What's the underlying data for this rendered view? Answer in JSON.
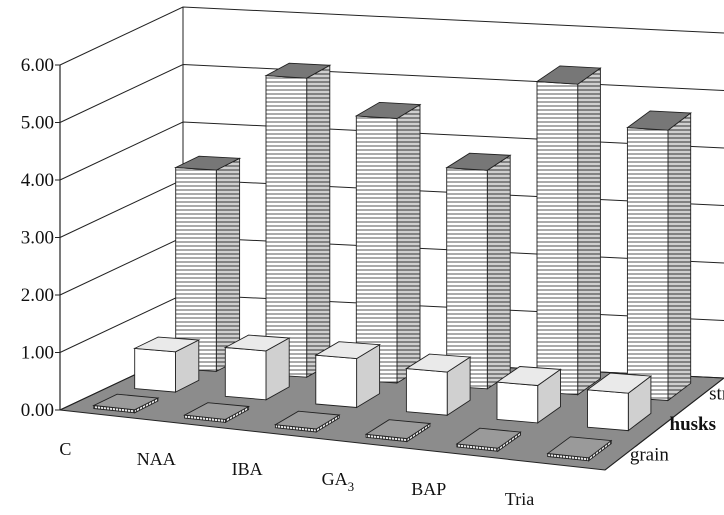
{
  "chart_data": {
    "type": "bar",
    "categories": [
      "C",
      "NAA",
      "IBA",
      "GA3",
      "BAP",
      "Tria"
    ],
    "series": [
      {
        "name": "grain",
        "values": [
          0.0,
          0.0,
          0.0,
          0.0,
          0.0,
          0.0
        ]
      },
      {
        "name": "husks",
        "values": [
          0.7,
          0.85,
          0.85,
          0.75,
          0.65,
          0.65
        ]
      },
      {
        "name": "straw",
        "values": [
          3.5,
          5.2,
          4.6,
          3.8,
          5.4,
          4.7
        ]
      }
    ],
    "ylim": [
      0,
      6
    ],
    "yticks": [
      "0.00",
      "1.00",
      "2.00",
      "3.00",
      "4.00",
      "5.00",
      "6.00"
    ],
    "grid": true,
    "legend": "series labels along the right depth axis"
  }
}
